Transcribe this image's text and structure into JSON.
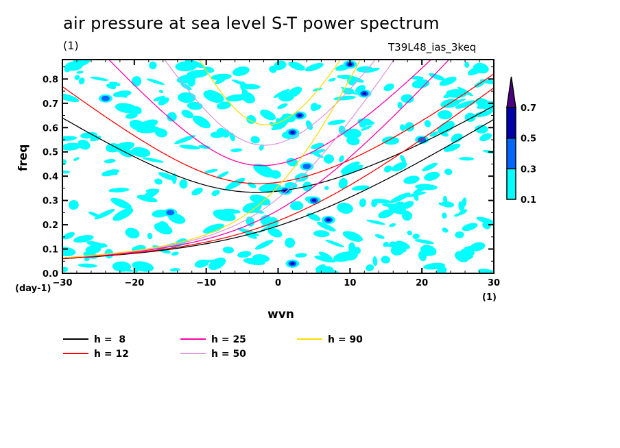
{
  "chart_data": {
    "type": "contour",
    "title": "air pressure at sea level S-T power spectrum",
    "subtitle_left": "(1)",
    "subtitle_right": "T39L48_ias_3keq",
    "xlabel": "wvn",
    "ylabel": "freq",
    "x_units": "(1)",
    "y_units": "(day-1)",
    "xlim": [
      -30,
      30
    ],
    "ylim": [
      0.0,
      0.88
    ],
    "x_ticks": [
      -30,
      -20,
      -10,
      0,
      10,
      20,
      30
    ],
    "x_tick_labels": [
      "-30",
      "-20",
      "-10",
      "0",
      "10",
      "20",
      "30"
    ],
    "y_ticks": [
      0.0,
      0.1,
      0.2,
      0.3,
      0.4,
      0.5,
      0.6,
      0.7,
      0.8
    ],
    "y_tick_labels": [
      "0.0",
      "0.1",
      "0.2",
      "0.3",
      "0.4",
      "0.5",
      "0.6",
      "0.7",
      "0.8"
    ],
    "colorbar": {
      "levels": [
        0.1,
        0.3,
        0.5,
        0.7
      ],
      "level_labels": [
        "0.1",
        "0.3",
        "0.5",
        "0.7"
      ],
      "colors": [
        "#00ffff",
        "#0066ff",
        "#0000aa",
        "#4b0082"
      ],
      "extend": "max"
    },
    "dispersion_curves": [
      {
        "name": "h =  8",
        "h": 8,
        "color": "#000000"
      },
      {
        "name": "h = 12",
        "h": 12,
        "color": "#ff0000"
      },
      {
        "name": "h = 25",
        "h": 25,
        "color": "#ff00aa"
      },
      {
        "name": "h = 50",
        "h": 50,
        "color": "#dd99dd"
      },
      {
        "name": "h = 90",
        "h": 90,
        "color": "#ffdd00"
      }
    ],
    "contour_blobs_sample": [
      {
        "wvn": 2,
        "freq": 0.58,
        "level": 0.5
      },
      {
        "wvn": 3,
        "freq": 0.65,
        "level": 0.5
      },
      {
        "wvn": 7,
        "freq": 0.22,
        "level": 0.5
      },
      {
        "wvn": 5,
        "freq": 0.3,
        "level": 0.5
      },
      {
        "wvn": 1,
        "freq": 0.34,
        "level": 0.5
      },
      {
        "wvn": 2,
        "freq": 0.04,
        "level": 0.5
      },
      {
        "wvn": 12,
        "freq": 0.74,
        "level": 0.5
      },
      {
        "wvn": 10,
        "freq": 0.86,
        "level": 0.5
      },
      {
        "wvn": -24,
        "freq": 0.72,
        "level": 0.3
      },
      {
        "wvn": -15,
        "freq": 0.25,
        "level": 0.3
      },
      {
        "wvn": 4,
        "freq": 0.44,
        "level": 0.3
      },
      {
        "wvn": 20,
        "freq": 0.55,
        "level": 0.3
      }
    ],
    "legend": [
      {
        "label": "h =  8",
        "color": "#000000"
      },
      {
        "label": "h = 12",
        "color": "#ff0000"
      },
      {
        "label": "h = 25",
        "color": "#ff00aa"
      },
      {
        "label": "h = 50",
        "color": "#dd99dd"
      },
      {
        "label": "h = 90",
        "color": "#ffdd00"
      }
    ]
  }
}
